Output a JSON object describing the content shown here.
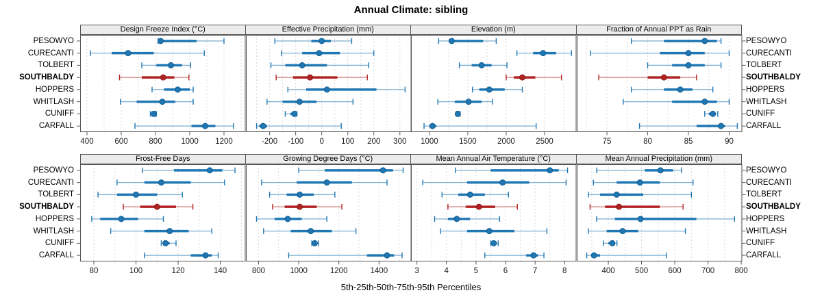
{
  "title": "Annual Climate: sibling",
  "caption": "5th-25th-50th-75th-95th Percentiles",
  "sites": [
    "PESOWYO",
    "CURECANTI",
    "TOLBERT",
    "SOUTHBALDY",
    "HOPPERS",
    "WHITLASH",
    "CUNIFF",
    "CARFALL"
  ],
  "highlight_site": "SOUTHBALDY",
  "colors": {
    "series": "#1f77b4",
    "series_dot_stroke": "#0f5a8e",
    "highlight": "#b22222",
    "highlight_dot_stroke": "#8c1a1a",
    "grid": "#d9d9d9",
    "strip_bg": "#ececec",
    "border": "#555555",
    "tick_text": "#1a1a1a"
  },
  "chart_data": [
    {
      "type": "dotplot-percentiles",
      "title": "Design Freeze Index (°C)",
      "xlim": [
        360,
        1326
      ],
      "ticks": [
        400,
        600,
        800,
        1000,
        1200
      ],
      "grid_step": 100,
      "percentile_labels": [
        "p5",
        "p25",
        "p50",
        "p75",
        "p95"
      ],
      "values": [
        [
          815,
          825,
          830,
          1040,
          1200
        ],
        [
          420,
          545,
          640,
          790,
          1085
        ],
        [
          720,
          805,
          890,
          955,
          1005
        ],
        [
          590,
          720,
          845,
          910,
          995
        ],
        [
          780,
          850,
          930,
          1000,
          1020
        ],
        [
          595,
          690,
          840,
          915,
          1020
        ],
        [
          770,
          780,
          790,
          795,
          805
        ],
        [
          680,
          1010,
          1090,
          1150,
          1255
        ]
      ]
    },
    {
      "type": "dotplot-percentiles",
      "title": "Effective Precipitation (mm)",
      "xlim": [
        -291,
        344
      ],
      "ticks": [
        -200,
        -100,
        0,
        100,
        200,
        300
      ],
      "grid_step": 50,
      "percentile_labels": [
        "p5",
        "p25",
        "p50",
        "p75",
        "p95"
      ],
      "values": [
        [
          -180,
          -40,
          0,
          35,
          115
        ],
        [
          -155,
          -75,
          -10,
          70,
          200
        ],
        [
          -195,
          -140,
          -75,
          20,
          180
        ],
        [
          -175,
          -110,
          -45,
          60,
          175
        ],
        [
          -130,
          -60,
          20,
          210,
          320
        ],
        [
          -210,
          -150,
          -85,
          -20,
          120
        ],
        [
          -140,
          -120,
          -105,
          -100,
          -95
        ],
        [
          -250,
          -240,
          -225,
          -210,
          75
        ]
      ]
    },
    {
      "type": "dotplot-percentiles",
      "title": "Elevation (m)",
      "xlim": [
        760,
        2915
      ],
      "ticks": [
        1000,
        1500,
        2000,
        2500
      ],
      "grid_step": 250,
      "percentile_labels": [
        "p5",
        "p25",
        "p50",
        "p75",
        "p95"
      ],
      "values": [
        [
          1120,
          1260,
          1290,
          1700,
          1870
        ],
        [
          2140,
          2350,
          2480,
          2650,
          2850
        ],
        [
          1390,
          1550,
          1680,
          1810,
          2010
        ],
        [
          2000,
          2100,
          2210,
          2380,
          2720
        ],
        [
          1560,
          1650,
          1780,
          1980,
          2210
        ],
        [
          1110,
          1330,
          1510,
          1680,
          1820
        ],
        [
          1350,
          1360,
          1370,
          1390,
          1400
        ],
        [
          930,
          1000,
          1040,
          1090,
          2390
        ]
      ]
    },
    {
      "type": "dotplot-percentiles",
      "title": "Fraction of Annual PPT as Rain",
      "xlim": [
        71.3,
        91.6
      ],
      "ticks": [
        75,
        80,
        85,
        90
      ],
      "grid_step": 2.5,
      "percentile_labels": [
        "p5",
        "p25",
        "p50",
        "p75",
        "p95"
      ],
      "values": [
        [
          78,
          82,
          87,
          88.5,
          89
        ],
        [
          73,
          81.5,
          85,
          87,
          90
        ],
        [
          80,
          83,
          85,
          87,
          89
        ],
        [
          74,
          80,
          82,
          84,
          86
        ],
        [
          78,
          82,
          84,
          85.5,
          88
        ],
        [
          77,
          83,
          87,
          88.5,
          90
        ],
        [
          87,
          87.5,
          88,
          88.3,
          88.6
        ],
        [
          79,
          86,
          89,
          89.5,
          91
        ]
      ]
    },
    {
      "type": "dotplot-percentiles",
      "title": "Frost-Free Days",
      "xlim": [
        73.5,
        152
      ],
      "ticks": [
        80,
        100,
        120,
        140
      ],
      "grid_step": 10,
      "percentile_labels": [
        "p5",
        "p25",
        "p50",
        "p75",
        "p95"
      ],
      "values": [
        [
          103,
          118,
          135,
          141,
          147
        ],
        [
          91,
          104,
          112,
          126,
          142
        ],
        [
          82,
          91,
          100,
          110,
          122
        ],
        [
          94,
          102,
          110,
          119,
          127
        ],
        [
          79,
          83,
          93,
          101,
          113
        ],
        [
          88,
          104,
          116,
          125,
          136
        ],
        [
          112,
          113,
          114,
          116,
          119
        ],
        [
          104,
          126,
          133,
          136,
          139
        ]
      ]
    },
    {
      "type": "dotplot-percentiles",
      "title": "Growing Degree Days (°C)",
      "xlim": [
        737,
        1561
      ],
      "ticks": [
        800,
        1000,
        1200,
        1400
      ],
      "grid_step": 100,
      "percentile_labels": [
        "p5",
        "p25",
        "p50",
        "p75",
        "p95"
      ],
      "values": [
        [
          1000,
          1130,
          1420,
          1470,
          1520
        ],
        [
          815,
          990,
          1140,
          1265,
          1440
        ],
        [
          855,
          940,
          1005,
          1075,
          1180
        ],
        [
          870,
          930,
          1005,
          1090,
          1215
        ],
        [
          790,
          880,
          945,
          1015,
          1140
        ],
        [
          825,
          960,
          1060,
          1165,
          1285
        ],
        [
          1065,
          1075,
          1080,
          1090,
          1098
        ],
        [
          950,
          1340,
          1440,
          1475,
          1515
        ]
      ]
    },
    {
      "type": "dotplot-percentiles",
      "title": "Mean Annual Air Temperature (°C)",
      "xlim": [
        2.8,
        8.4
      ],
      "ticks": [
        3,
        4,
        5,
        6,
        7,
        8
      ],
      "grid_step": 0.5,
      "percentile_labels": [
        "p5",
        "p25",
        "p50",
        "p75",
        "p95"
      ],
      "values": [
        [
          4.3,
          5.5,
          7.5,
          7.8,
          8.1
        ],
        [
          3.2,
          4.7,
          5.9,
          6.8,
          8.05
        ],
        [
          3.85,
          4.4,
          4.8,
          5.3,
          6.1
        ],
        [
          4.05,
          4.65,
          5.1,
          5.65,
          6.4
        ],
        [
          3.6,
          4.05,
          4.35,
          4.8,
          5.8
        ],
        [
          3.8,
          4.7,
          5.45,
          6.3,
          7.4
        ],
        [
          5.5,
          5.55,
          5.6,
          5.7,
          5.75
        ],
        [
          5.3,
          6.7,
          6.95,
          7.1,
          7.3
        ]
      ]
    },
    {
      "type": "dotplot-percentiles",
      "title": "Mean Annual Precipitation (mm)",
      "xlim": [
        305,
        803
      ],
      "ticks": [
        400,
        500,
        600,
        700,
        800
      ],
      "grid_step": 50,
      "percentile_labels": [
        "p5",
        "p25",
        "p50",
        "p75",
        "p95"
      ],
      "values": [
        [
          365,
          510,
          557,
          595,
          620
        ],
        [
          355,
          425,
          495,
          555,
          655
        ],
        [
          340,
          375,
          425,
          505,
          650
        ],
        [
          345,
          390,
          432,
          555,
          625
        ],
        [
          365,
          420,
          497,
          665,
          780
        ],
        [
          340,
          395,
          443,
          490,
          632
        ],
        [
          385,
          400,
          412,
          420,
          426
        ],
        [
          335,
          350,
          357,
          375,
          575
        ]
      ]
    }
  ]
}
